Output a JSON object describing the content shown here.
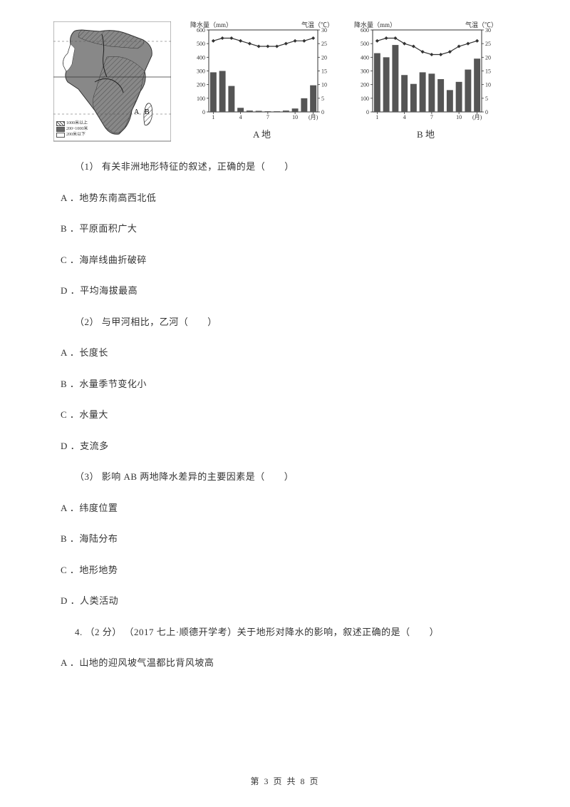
{
  "map": {
    "legend": [
      {
        "label": "1000米以上",
        "fill": "pattern"
      },
      {
        "label": "200~1000米",
        "fill": "#666666"
      },
      {
        "label": "200米以下",
        "fill": "#ffffff"
      }
    ]
  },
  "chartA": {
    "caption": "A 地",
    "precipLabel": "降水量（mm）",
    "tempLabel": "气温（℃）",
    "leftAxis": {
      "min": 0,
      "max": 600,
      "step": 100,
      "ticks": [
        0,
        100,
        200,
        300,
        400,
        500,
        600
      ]
    },
    "rightAxis": {
      "min": 0,
      "max": 30,
      "step": 5,
      "ticks": [
        0,
        5,
        10,
        15,
        20,
        25,
        30
      ]
    },
    "xLabels": [
      "1",
      "",
      "",
      "4",
      "",
      "",
      "7",
      "",
      "",
      "10",
      "",
      "(月)"
    ],
    "precip": [
      290,
      300,
      190,
      30,
      10,
      8,
      5,
      5,
      10,
      25,
      100,
      195
    ],
    "temp": [
      26,
      27,
      27,
      26,
      25,
      24,
      24,
      24,
      25,
      26,
      26,
      27
    ],
    "barColor": "#555555",
    "lineColor": "#333333"
  },
  "chartB": {
    "caption": "B 地",
    "precipLabel": "降水量（mm）",
    "tempLabel": "气温（℃）",
    "leftAxis": {
      "min": 0,
      "max": 600,
      "step": 100,
      "ticks": [
        0,
        100,
        200,
        300,
        400,
        500,
        600
      ]
    },
    "rightAxis": {
      "min": 0,
      "max": 30,
      "step": 5,
      "ticks": [
        0,
        5,
        10,
        15,
        20,
        25,
        30
      ]
    },
    "xLabels": [
      "1",
      "",
      "",
      "4",
      "",
      "",
      "7",
      "",
      "",
      "10",
      "",
      "(月)"
    ],
    "precip": [
      430,
      400,
      490,
      270,
      205,
      290,
      280,
      240,
      160,
      220,
      310,
      390
    ],
    "temp": [
      26,
      27,
      27,
      25,
      24,
      22,
      21,
      21,
      22,
      24,
      25,
      26
    ],
    "barColor": "#555555",
    "lineColor": "#333333"
  },
  "questions": {
    "q1": {
      "stem": "（1） 有关非洲地形特征的叙述，正确的是（　　）",
      "A": "A ．地势东南高西北低",
      "B": "B ．平原面积广大",
      "C": "C ．海岸线曲折破碎",
      "D": "D ．平均海拔最高"
    },
    "q2": {
      "stem": "（2） 与甲河相比，乙河（　　）",
      "A": "A ．长度长",
      "B": "B ．水量季节变化小",
      "C": "C ．水量大",
      "D": "D ．支流多"
    },
    "q3": {
      "stem": "（3） 影响 AB 两地降水差异的主要因素是（　　）",
      "A": "A ．纬度位置",
      "B": "B ．海陆分布",
      "C": "C ．地形地势",
      "D": "D ．人类活动"
    },
    "q4": {
      "stem": "4. （2 分） （2017 七上·顺德开学考）关于地形对降水的影响，叙述正确的是（　　）",
      "A": "A ．山地的迎风坡气温都比背风坡高"
    }
  },
  "footer": "第 3 页 共 8 页"
}
